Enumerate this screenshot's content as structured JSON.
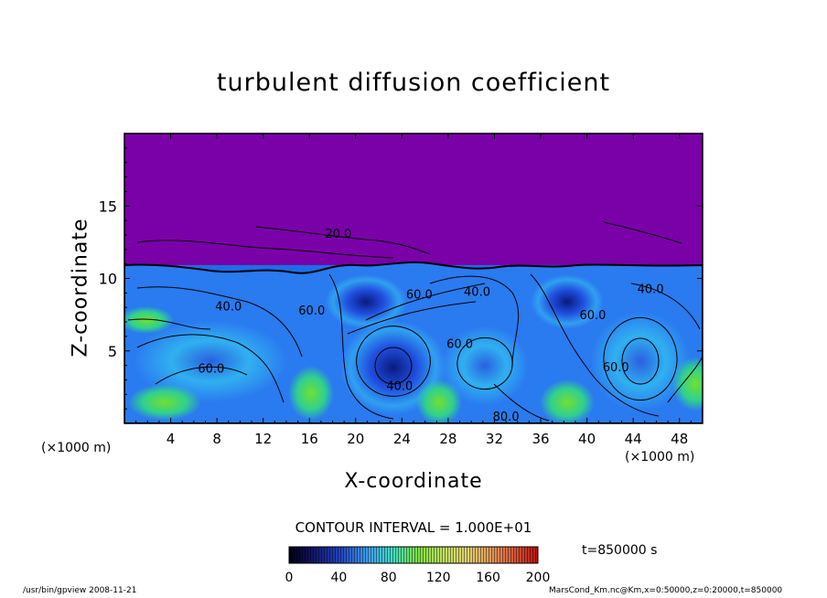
{
  "chart_data": {
    "type": "heatmap",
    "title": "turbulent diffusion coefficient",
    "xlabel": "X-coordinate",
    "ylabel": "Z-coordinate",
    "x_unit": "(×1000 m)",
    "xlim": [
      0,
      50
    ],
    "ylim": [
      0,
      20
    ],
    "x_ticks": [
      4,
      8,
      12,
      16,
      20,
      24,
      28,
      32,
      36,
      40,
      44,
      48
    ],
    "y_ticks": [
      5,
      10,
      15
    ],
    "contour_interval_text": "CONTOUR INTERVAL = 1.000E+01",
    "colorbar": {
      "min": 0,
      "max": 200,
      "ticks": [
        0,
        40,
        80,
        120,
        160,
        200
      ]
    },
    "contour_labels": [
      {
        "text": "20.0",
        "x": 18.5,
        "z": 12.8
      },
      {
        "text": "60.0",
        "x": 29.0,
        "z": 5.2
      },
      {
        "text": "60.0",
        "x": 16.2,
        "z": 7.5
      },
      {
        "text": "60.0",
        "x": 25.5,
        "z": 8.6
      },
      {
        "text": "40.0",
        "x": 9.0,
        "z": 7.8
      },
      {
        "text": "40.0",
        "x": 23.8,
        "z": 2.3
      },
      {
        "text": "40.0",
        "x": 30.5,
        "z": 8.8
      },
      {
        "text": "60.0",
        "x": 7.5,
        "z": 3.5
      },
      {
        "text": "80.0",
        "x": 33.0,
        "z": 0.2
      },
      {
        "text": "60.0",
        "x": 40.5,
        "z": 7.2
      },
      {
        "text": "60.0",
        "x": 42.5,
        "z": 3.6
      },
      {
        "text": "40.0",
        "x": 45.5,
        "z": 9.0
      }
    ],
    "regions": [
      {
        "name": "upper stable layer",
        "value": 0
      },
      {
        "name": "mixed layer",
        "z_top": 11
      }
    ]
  },
  "time_label": "t=850000 s",
  "footer_left": "/usr/bin/gpview   2008-11-21",
  "footer_right": "MarsCond_Km.nc@Km,x=0:50000,z=0:20000,t=850000",
  "colors": {
    "stable_layer": "#7a00a8",
    "low": "#0a0a6a",
    "mid_low": "#1e40e0",
    "mid": "#2aa0f0",
    "mid_high": "#20d0a0",
    "high": "#60e020"
  }
}
